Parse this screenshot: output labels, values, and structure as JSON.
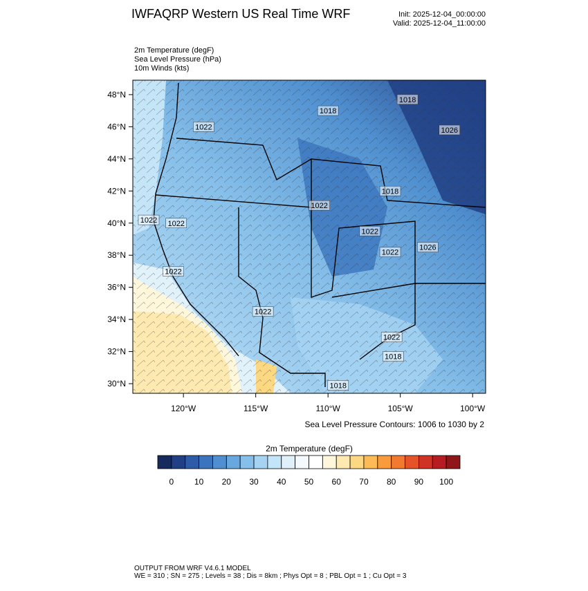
{
  "header": {
    "title": "IWFAQRP Western US Real Time WRF",
    "init": "Init: 2025-12-04_00:00:00",
    "valid": "Valid: 2025-12-04_11:00:00"
  },
  "fields": [
    "2m Temperature   (degF)",
    "Sea Level Pressure   (hPa)",
    "10m Winds   (kts)"
  ],
  "map": {
    "lonlim": [
      -123.5,
      -99.1
    ],
    "latlim": [
      29.4,
      48.9
    ],
    "lat_ticks": [
      {
        "value": 30,
        "label": "30°N"
      },
      {
        "value": 32,
        "label": "32°N"
      },
      {
        "value": 34,
        "label": "34°N"
      },
      {
        "value": 36,
        "label": "36°N"
      },
      {
        "value": 38,
        "label": "38°N"
      },
      {
        "value": 40,
        "label": "40°N"
      },
      {
        "value": 42,
        "label": "42°N"
      },
      {
        "value": 44,
        "label": "44°N"
      },
      {
        "value": 46,
        "label": "46°N"
      },
      {
        "value": 48,
        "label": "48°N"
      }
    ],
    "lon_ticks": [
      {
        "value": -120,
        "label": "120°W"
      },
      {
        "value": -115,
        "label": "115°W"
      },
      {
        "value": -110,
        "label": "110°W"
      },
      {
        "value": -105,
        "label": "105°W"
      },
      {
        "value": -100,
        "label": "100°W"
      }
    ],
    "contour_labels": [
      {
        "text": "1022",
        "lon": -118.6,
        "lat": 46.0
      },
      {
        "text": "1018",
        "lon": -110.0,
        "lat": 47.0
      },
      {
        "text": "1018",
        "lon": -104.5,
        "lat": 47.7
      },
      {
        "text": "1026",
        "lon": -101.6,
        "lat": 45.8
      },
      {
        "text": "1018",
        "lon": -105.7,
        "lat": 42.0
      },
      {
        "text": "1022",
        "lon": -110.6,
        "lat": 41.1
      },
      {
        "text": "1022",
        "lon": -122.4,
        "lat": 40.2
      },
      {
        "text": "1022",
        "lon": -120.5,
        "lat": 40.0
      },
      {
        "text": "1022",
        "lon": -107.1,
        "lat": 39.5
      },
      {
        "text": "1022",
        "lon": -105.7,
        "lat": 38.2
      },
      {
        "text": "1026",
        "lon": -103.1,
        "lat": 38.5
      },
      {
        "text": "1022",
        "lon": -120.7,
        "lat": 37.0
      },
      {
        "text": "1022",
        "lon": -114.5,
        "lat": 34.5
      },
      {
        "text": "1022",
        "lon": -105.6,
        "lat": 32.9
      },
      {
        "text": "1018",
        "lon": -105.5,
        "lat": 31.7
      },
      {
        "text": "1018",
        "lon": -109.3,
        "lat": 29.9
      }
    ],
    "contour_note": "Sea Level Pressure Contours: 1006 to 1030 by 2"
  },
  "colorbar": {
    "title": "2m Temperature  (degF)",
    "bounds": [
      -5,
      0,
      5,
      10,
      15,
      20,
      25,
      30,
      35,
      40,
      45,
      50,
      55,
      60,
      65,
      70,
      75,
      80,
      85,
      90,
      95,
      100,
      105
    ],
    "colors": [
      "#172a5e",
      "#213f85",
      "#2d5ba7",
      "#3b74bd",
      "#4f8fcf",
      "#69a8de",
      "#86bfe9",
      "#a6d3f2",
      "#c4e4f8",
      "#dff0fb",
      "#f4f9fd",
      "#ffffff",
      "#fff7dc",
      "#feeab0",
      "#fdd882",
      "#fcbb54",
      "#f99b3c",
      "#f27a30",
      "#e55428",
      "#d03225",
      "#b61d22",
      "#8f1719"
    ],
    "ticks": [
      0,
      10,
      20,
      30,
      40,
      50,
      60,
      70,
      80,
      90,
      100
    ]
  },
  "footer": {
    "line1": "OUTPUT FROM WRF V4.6.1 MODEL",
    "line2": "WE = 310 ; SN = 275 ; Levels = 38 ; Dis = 8km ; Phys Opt = 8 ; PBL Opt = 1 ; Cu Opt = 3"
  }
}
